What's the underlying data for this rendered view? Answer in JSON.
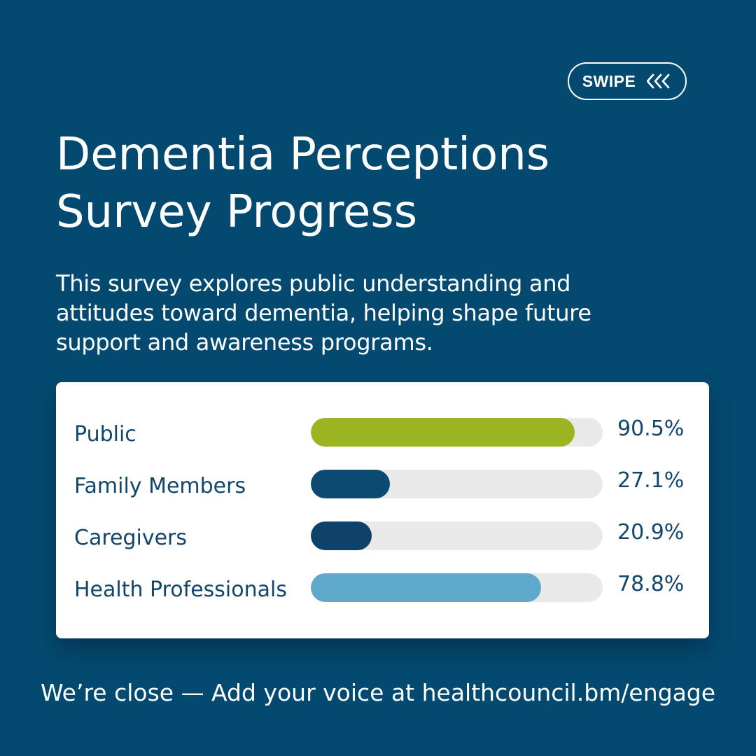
{
  "swipe": {
    "label": "SWIPE",
    "icon": "triple-chevron-left-icon"
  },
  "title_lines": [
    "Dementia Perceptions",
    "Survey Progress"
  ],
  "description_lines": [
    "This survey explores public understanding and",
    "attitudes toward dementia, helping shape future",
    "support and awareness programs."
  ],
  "chart_data": {
    "type": "bar",
    "orientation": "horizontal",
    "title": "",
    "xlabel": "",
    "ylabel": "",
    "xlim": [
      0,
      100
    ],
    "categories": [
      "Public",
      "Family Members",
      "Caregivers",
      "Health Professionals"
    ],
    "values": [
      90.5,
      27.1,
      20.9,
      78.8
    ],
    "value_labels": [
      "90.5%",
      "27.1%",
      "20.9%",
      "78.8%"
    ],
    "colors": [
      "#9bb522",
      "#0d4a72",
      "#0f426b",
      "#5ea9c9"
    ],
    "track_color": "#e9e9ea",
    "grid": false,
    "legend": "none"
  },
  "footer": "We’re close — Add your voice at healthcouncil.bm/engage",
  "colors": {
    "background": "#044a70",
    "text": "#ffffff",
    "card": "#ffffff",
    "label_text": "#12466b"
  }
}
